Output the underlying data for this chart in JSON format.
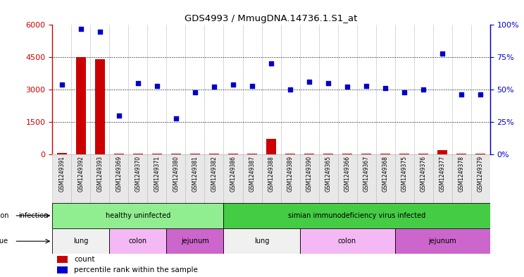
{
  "title": "GDS4993 / MmugDNA.14736.1.S1_at",
  "samples": [
    "GSM1249391",
    "GSM1249392",
    "GSM1249393",
    "GSM1249369",
    "GSM1249370",
    "GSM1249371",
    "GSM1249380",
    "GSM1249381",
    "GSM1249382",
    "GSM1249386",
    "GSM1249387",
    "GSM1249388",
    "GSM1249389",
    "GSM1249390",
    "GSM1249365",
    "GSM1249366",
    "GSM1249367",
    "GSM1249368",
    "GSM1249375",
    "GSM1249376",
    "GSM1249377",
    "GSM1249378",
    "GSM1249379"
  ],
  "count_values": [
    50,
    4500,
    4400,
    30,
    30,
    30,
    30,
    30,
    30,
    30,
    30,
    700,
    30,
    30,
    30,
    30,
    30,
    30,
    30,
    30,
    200,
    30,
    30
  ],
  "percentile_values": [
    54,
    97,
    95,
    30,
    55,
    53,
    28,
    48,
    52,
    54,
    53,
    70,
    50,
    56,
    55,
    52,
    53,
    51,
    48,
    50,
    78,
    46,
    46
  ],
  "tissue_groups": [
    {
      "label": "lung",
      "start": 0,
      "end": 3,
      "color": "#F0F0F0"
    },
    {
      "label": "colon",
      "start": 3,
      "end": 6,
      "color": "#F4B8F4"
    },
    {
      "label": "jejunum",
      "start": 6,
      "end": 9,
      "color": "#CC66CC"
    },
    {
      "label": "lung",
      "start": 9,
      "end": 13,
      "color": "#F0F0F0"
    },
    {
      "label": "colon",
      "start": 13,
      "end": 18,
      "color": "#F4B8F4"
    },
    {
      "label": "jejunum",
      "start": 18,
      "end": 23,
      "color": "#CC66CC"
    }
  ],
  "inf_groups": [
    {
      "label": "healthy uninfected",
      "start": 0,
      "end": 9,
      "color": "#90EE90"
    },
    {
      "label": "simian immunodeficiency virus infected",
      "start": 9,
      "end": 23,
      "color": "#44CC44"
    }
  ],
  "left_ylim": [
    0,
    6000
  ],
  "left_yticks": [
    0,
    1500,
    3000,
    4500,
    6000
  ],
  "right_ylim": [
    0,
    100
  ],
  "right_yticks": [
    0,
    25,
    50,
    75,
    100
  ],
  "bar_color": "#CC0000",
  "dot_color": "#0000CC",
  "hline_color": "#555555",
  "spine_color": "#000000",
  "col_sep_color": "#AAAAAA",
  "tick_label_bg": "#E0E0E0"
}
